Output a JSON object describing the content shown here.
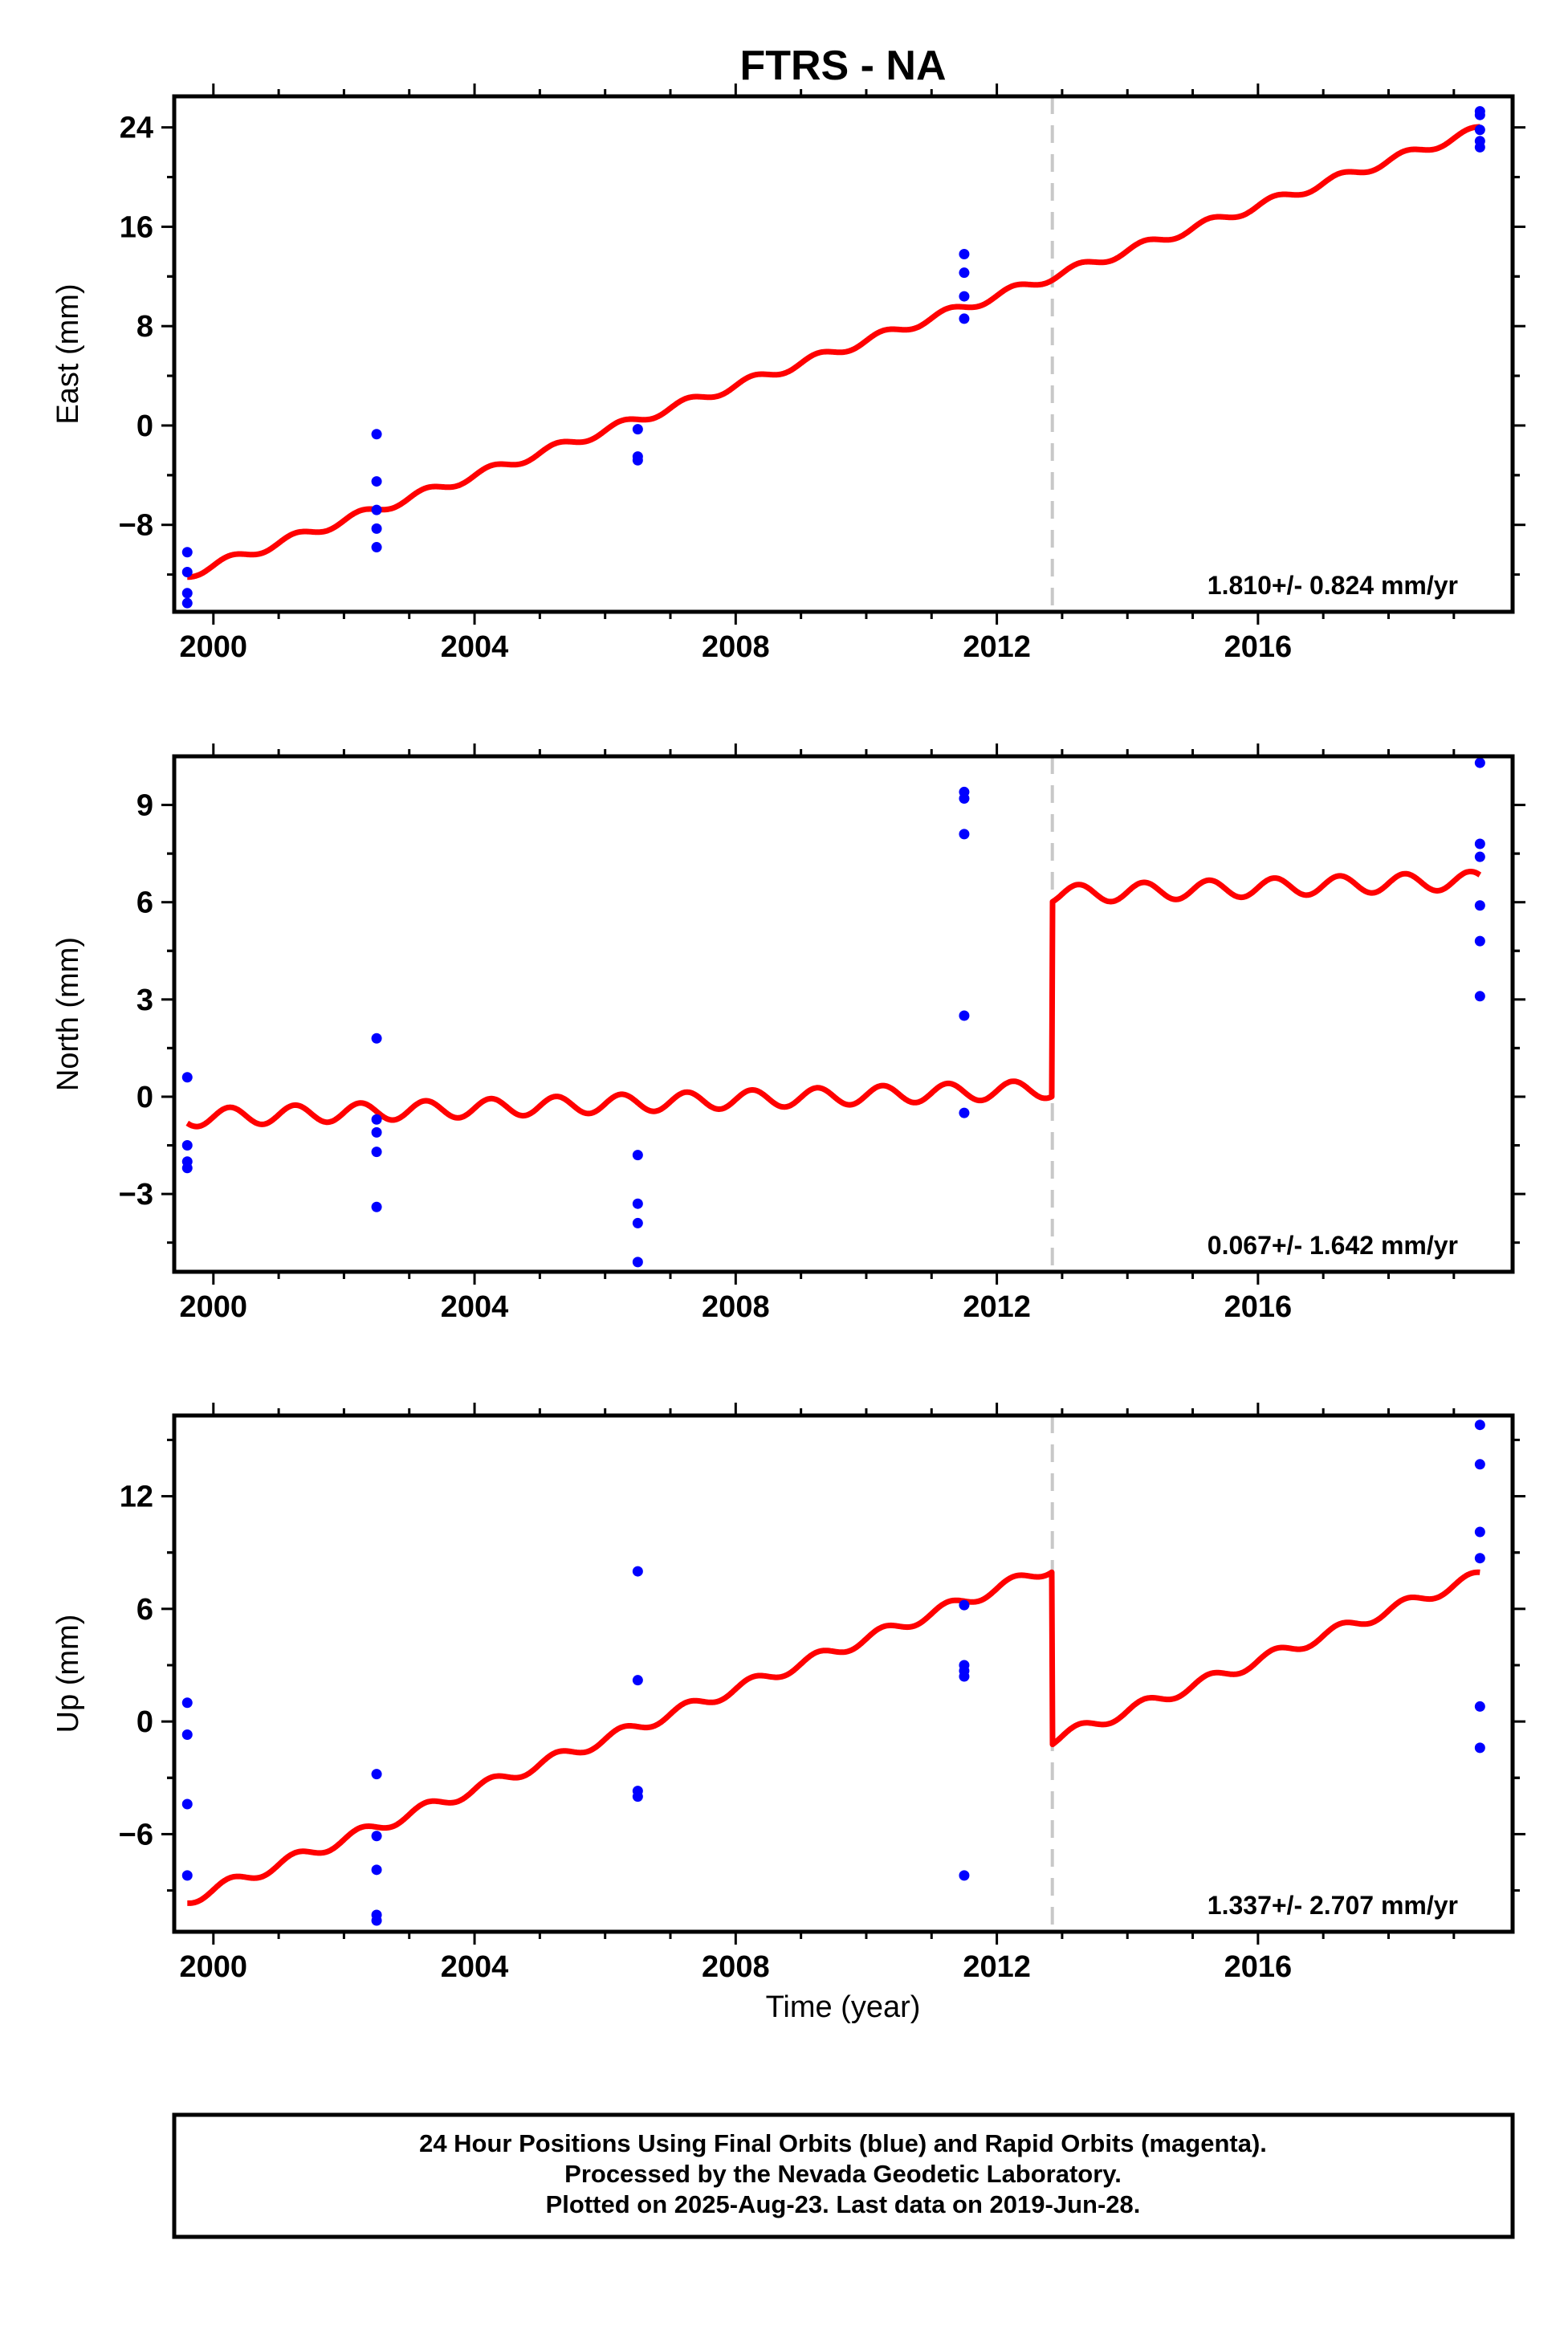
{
  "title": "FTRS - NA",
  "xlabel": "Time (year)",
  "colors": {
    "final_orbits": "#0000ff",
    "model": "#ff0000",
    "offset_line": "#c8c8c8",
    "axes": "#000000"
  },
  "footer": {
    "line1": "24 Hour Positions Using Final Orbits (blue) and Rapid Orbits (magenta).",
    "line2": "Processed by the Nevada Geodetic Laboratory.",
    "line3": "Plotted on 2025-Aug-23. Last data on 2019-Jun-28."
  },
  "chart_data": [
    {
      "type": "scatter",
      "ylabel": "East (mm)",
      "rate_label": "1.810+/- 0.824 mm/yr",
      "xlim": [
        1999.4,
        2019.9
      ],
      "ylim": [
        -15,
        26.5
      ],
      "x_ticks": [
        2000,
        2004,
        2008,
        2012,
        2016
      ],
      "y_ticks": [
        -8,
        0,
        8,
        16,
        24
      ],
      "offset_epoch": 2012.85,
      "final_orbits": [
        {
          "x": 1999.6,
          "y": -10.2
        },
        {
          "x": 1999.6,
          "y": -11.8
        },
        {
          "x": 1999.6,
          "y": -13.5
        },
        {
          "x": 1999.6,
          "y": -14.3
        },
        {
          "x": 2002.5,
          "y": -0.7
        },
        {
          "x": 2002.5,
          "y": -4.5
        },
        {
          "x": 2002.5,
          "y": -6.8
        },
        {
          "x": 2002.5,
          "y": -8.3
        },
        {
          "x": 2002.5,
          "y": -9.8
        },
        {
          "x": 2006.5,
          "y": -0.3
        },
        {
          "x": 2006.5,
          "y": -2.5
        },
        {
          "x": 2006.5,
          "y": -2.8
        },
        {
          "x": 2011.5,
          "y": 13.8
        },
        {
          "x": 2011.5,
          "y": 12.3
        },
        {
          "x": 2011.5,
          "y": 10.4
        },
        {
          "x": 2011.5,
          "y": 8.6
        },
        {
          "x": 2019.4,
          "y": 25.3
        },
        {
          "x": 2019.4,
          "y": 25.0
        },
        {
          "x": 2019.4,
          "y": 23.8
        },
        {
          "x": 2019.4,
          "y": 22.9
        },
        {
          "x": 2019.4,
          "y": 22.4
        }
      ],
      "model": {
        "x_start": 1999.6,
        "x_end": 2019.4,
        "rate": 1.81,
        "y_at_start": -12.0,
        "seasonal_amp": 0.35,
        "offset": 0.0
      }
    },
    {
      "type": "scatter",
      "ylabel": "North (mm)",
      "rate_label": "0.067+/- 1.642 mm/yr",
      "xlim": [
        1999.4,
        2019.9
      ],
      "ylim": [
        -5.4,
        10.5
      ],
      "x_ticks": [
        2000,
        2004,
        2008,
        2012,
        2016
      ],
      "y_ticks": [
        -3,
        0,
        3,
        6,
        9
      ],
      "offset_epoch": 2012.85,
      "final_orbits": [
        {
          "x": 1999.6,
          "y": 0.6
        },
        {
          "x": 1999.6,
          "y": -1.5
        },
        {
          "x": 1999.6,
          "y": -2.0
        },
        {
          "x": 1999.6,
          "y": -2.2
        },
        {
          "x": 2002.5,
          "y": 1.8
        },
        {
          "x": 2002.5,
          "y": -0.7
        },
        {
          "x": 2002.5,
          "y": -1.1
        },
        {
          "x": 2002.5,
          "y": -1.7
        },
        {
          "x": 2002.5,
          "y": -3.4
        },
        {
          "x": 2006.5,
          "y": -1.8
        },
        {
          "x": 2006.5,
          "y": -3.3
        },
        {
          "x": 2006.5,
          "y": -3.9
        },
        {
          "x": 2006.5,
          "y": -5.1
        },
        {
          "x": 2011.5,
          "y": 9.4
        },
        {
          "x": 2011.5,
          "y": 9.2
        },
        {
          "x": 2011.5,
          "y": 8.1
        },
        {
          "x": 2011.5,
          "y": 2.5
        },
        {
          "x": 2011.5,
          "y": -0.5
        },
        {
          "x": 2019.4,
          "y": 10.3
        },
        {
          "x": 2019.4,
          "y": 7.8
        },
        {
          "x": 2019.4,
          "y": 7.4
        },
        {
          "x": 2019.4,
          "y": 5.9
        },
        {
          "x": 2019.4,
          "y": 4.8
        },
        {
          "x": 2019.4,
          "y": 3.1
        }
      ],
      "model": {
        "x_start": 1999.6,
        "x_end": 2019.4,
        "rate": 0.067,
        "y_at_start": -0.65,
        "seasonal_amp": 0.28,
        "offset": 6.0
      }
    },
    {
      "type": "scatter",
      "ylabel": "Up (mm)",
      "rate_label": "1.337+/- 2.707 mm/yr",
      "xlim": [
        1999.4,
        2019.9
      ],
      "ylim": [
        -11.2,
        16.3
      ],
      "x_ticks": [
        2000,
        2004,
        2008,
        2012,
        2016
      ],
      "y_ticks": [
        -6,
        0,
        6,
        12
      ],
      "offset_epoch": 2012.85,
      "final_orbits": [
        {
          "x": 1999.6,
          "y": 1.0
        },
        {
          "x": 1999.6,
          "y": -0.7
        },
        {
          "x": 1999.6,
          "y": -4.4
        },
        {
          "x": 1999.6,
          "y": -8.2
        },
        {
          "x": 2002.5,
          "y": -2.8
        },
        {
          "x": 2002.5,
          "y": -6.1
        },
        {
          "x": 2002.5,
          "y": -7.9
        },
        {
          "x": 2002.5,
          "y": -10.3
        },
        {
          "x": 2002.5,
          "y": -10.6
        },
        {
          "x": 2006.5,
          "y": 8.0
        },
        {
          "x": 2006.5,
          "y": 2.2
        },
        {
          "x": 2006.5,
          "y": -3.7
        },
        {
          "x": 2006.5,
          "y": -4.0
        },
        {
          "x": 2011.5,
          "y": 6.2
        },
        {
          "x": 2011.5,
          "y": 3.0
        },
        {
          "x": 2011.5,
          "y": 2.7
        },
        {
          "x": 2011.5,
          "y": 2.4
        },
        {
          "x": 2011.5,
          "y": -8.2
        },
        {
          "x": 2019.4,
          "y": 15.8
        },
        {
          "x": 2019.4,
          "y": 13.7
        },
        {
          "x": 2019.4,
          "y": 10.1
        },
        {
          "x": 2019.4,
          "y": 8.7
        },
        {
          "x": 2019.4,
          "y": 0.8
        },
        {
          "x": 2019.4,
          "y": -1.4
        }
      ],
      "model": {
        "x_start": 1999.6,
        "x_end": 2019.4,
        "rate": 1.337,
        "y_at_start": -9.5,
        "seasonal_amp": 0.3,
        "offset": -9.2
      }
    }
  ]
}
